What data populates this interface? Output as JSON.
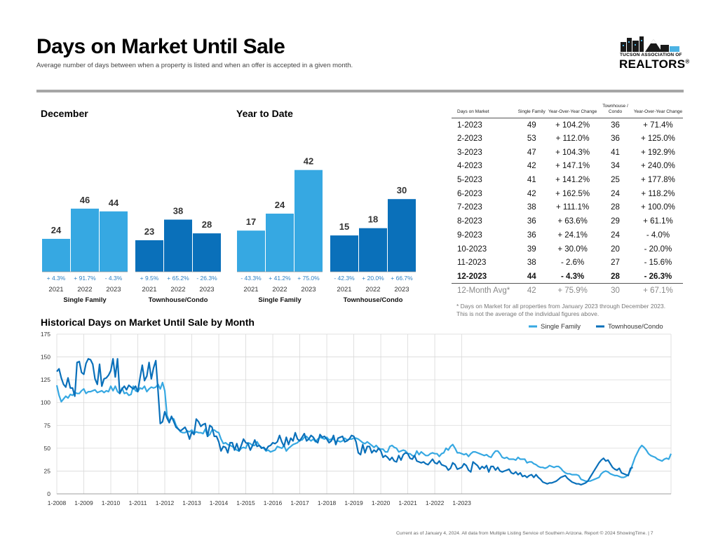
{
  "header": {
    "title": "Days on Market Until Sale",
    "subtitle": "Average number of days between when a property is listed and when an offer is accepted in a given month."
  },
  "logo": {
    "line1": "TUCSON ASSOCIATION OF",
    "line2": "REALTORS",
    "reg": "®"
  },
  "colors": {
    "single_family": "#36a8e2",
    "townhouse": "#0a70ba",
    "grid": "#d9d9d9",
    "divider": "#a6a6a6",
    "pct_text": "#2b7fc3"
  },
  "sections": {
    "december": "December",
    "ytd": "Year to Date"
  },
  "chart_data": [
    {
      "type": "bar",
      "title": "December",
      "groups": [
        {
          "name": "Single Family",
          "categories": [
            "2021",
            "2022",
            "2023"
          ],
          "values": [
            24,
            46,
            44
          ],
          "changes": [
            "+ 4.3%",
            "+ 91.7%",
            "- 4.3%"
          ]
        },
        {
          "name": "Townhouse/Condo",
          "categories": [
            "2021",
            "2022",
            "2023"
          ],
          "values": [
            23,
            38,
            28
          ],
          "changes": [
            "+ 9.5%",
            "+ 65.2%",
            "- 26.3%"
          ]
        }
      ]
    },
    {
      "type": "bar",
      "title": "Year to Date",
      "groups": [
        {
          "name": "Single Family",
          "categories": [
            "2021",
            "2022",
            "2023"
          ],
          "values": [
            17,
            24,
            42
          ],
          "changes": [
            "- 43.3%",
            "+ 41.2%",
            "+ 75.0%"
          ]
        },
        {
          "name": "Townhouse/Condo",
          "categories": [
            "2021",
            "2022",
            "2023"
          ],
          "values": [
            15,
            18,
            30
          ],
          "changes": [
            "- 42.3%",
            "+ 20.0%",
            "+ 66.7%"
          ]
        }
      ]
    },
    {
      "type": "table",
      "columns": [
        "Days on Market",
        "Single Family",
        "Year-Over-Year Change",
        "Townhouse / Condo",
        "Year-Over-Year Change"
      ],
      "rows": [
        [
          "1-2023",
          "49",
          "+ 104.2%",
          "36",
          "+ 71.4%"
        ],
        [
          "2-2023",
          "53",
          "+ 112.0%",
          "36",
          "+ 125.0%"
        ],
        [
          "3-2023",
          "47",
          "+ 104.3%",
          "41",
          "+ 192.9%"
        ],
        [
          "4-2023",
          "42",
          "+ 147.1%",
          "34",
          "+ 240.0%"
        ],
        [
          "5-2023",
          "41",
          "+ 141.2%",
          "25",
          "+ 177.8%"
        ],
        [
          "6-2023",
          "42",
          "+ 162.5%",
          "24",
          "+ 118.2%"
        ],
        [
          "7-2023",
          "38",
          "+ 111.1%",
          "28",
          "+ 100.0%"
        ],
        [
          "8-2023",
          "36",
          "+ 63.6%",
          "29",
          "+ 61.1%"
        ],
        [
          "9-2023",
          "36",
          "+ 24.1%",
          "24",
          "- 4.0%"
        ],
        [
          "10-2023",
          "39",
          "+ 30.0%",
          "20",
          "- 20.0%"
        ],
        [
          "11-2023",
          "38",
          "- 2.6%",
          "27",
          "- 15.6%"
        ],
        [
          "12-2023",
          "44",
          "- 4.3%",
          "28",
          "- 26.3%"
        ]
      ],
      "summary": [
        "12-Month Avg*",
        "42",
        "+ 75.9%",
        "30",
        "+ 67.1%"
      ],
      "footnote": "* Days on Market for all properties from January 2023 through December 2023. This is not the average of the individual figures above."
    },
    {
      "type": "line",
      "title": "Historical Days on Market Until Sale by Month",
      "ylim": [
        0,
        175
      ],
      "yticks": [
        0,
        25,
        50,
        75,
        100,
        125,
        150,
        175
      ],
      "xticks": [
        "1-2008",
        "1-2009",
        "1-2010",
        "1-2011",
        "1-2012",
        "1-2013",
        "1-2014",
        "1-2015",
        "1-2016",
        "1-2017",
        "1-2018",
        "1-2019",
        "1-2020",
        "1-2021",
        "1-2022",
        "1-2023"
      ],
      "x_start": "1-2008",
      "legend": "top-right",
      "series": [
        {
          "name": "Single Family",
          "values": [
            119,
            108,
            101,
            104,
            107,
            105,
            109,
            108,
            111,
            110,
            110,
            113,
            115,
            110,
            112,
            112,
            113,
            114,
            111,
            112,
            113,
            111,
            113,
            112,
            118,
            113,
            118,
            112,
            110,
            116,
            110,
            111,
            108,
            109,
            118,
            113,
            112,
            116,
            115,
            118,
            112,
            115,
            117,
            116,
            117,
            120,
            115,
            122,
            113,
            86,
            80,
            83,
            82,
            75,
            71,
            68,
            67,
            67,
            69,
            68,
            70,
            66,
            68,
            67,
            67,
            66,
            71,
            63,
            65,
            70,
            70,
            68,
            67,
            60,
            55,
            56,
            54,
            53,
            52,
            50,
            48,
            47,
            50,
            51,
            50,
            56,
            55,
            53,
            53,
            57,
            53,
            51,
            50,
            47,
            48,
            46,
            47,
            48,
            52,
            51,
            50,
            53,
            47,
            50,
            52,
            54,
            55,
            56,
            59,
            59,
            62,
            63,
            60,
            58,
            60,
            57,
            60,
            62,
            61,
            60,
            62,
            59,
            60,
            60,
            57,
            58,
            57,
            58,
            61,
            59,
            60,
            60,
            61,
            61,
            60,
            58,
            56,
            55,
            57,
            55,
            53,
            51,
            53,
            50,
            49,
            49,
            46,
            46,
            52,
            53,
            51,
            50,
            46,
            47,
            48,
            47,
            44,
            44,
            42,
            41,
            47,
            43,
            46,
            44,
            42,
            42,
            44,
            45,
            44,
            44,
            41,
            44,
            45,
            50,
            48,
            52,
            54,
            50,
            45,
            45,
            44,
            43,
            44,
            41,
            44,
            46,
            46,
            45,
            44,
            43,
            42,
            43,
            41,
            40,
            44,
            47,
            47,
            44,
            40,
            39,
            40,
            38,
            38,
            38,
            37,
            40,
            38,
            38,
            38,
            34,
            35,
            35,
            33,
            32,
            30,
            29,
            29,
            28,
            29,
            31,
            30,
            29,
            30,
            30,
            28,
            25,
            23,
            22,
            22,
            21,
            21,
            21,
            20,
            16,
            15,
            14,
            14,
            14,
            15,
            16,
            17,
            18,
            22,
            24,
            25,
            24,
            22,
            21,
            20,
            20,
            19,
            18,
            18,
            19,
            21,
            26,
            33,
            40,
            45,
            50,
            53,
            51,
            48,
            44,
            42,
            41,
            40,
            38,
            37,
            36,
            38,
            39,
            38,
            44
          ]
        },
        {
          "name": "Townhouse/Condo",
          "values": [
            134,
            137,
            127,
            120,
            117,
            127,
            116,
            116,
            107,
            144,
            145,
            133,
            131,
            143,
            148,
            147,
            142,
            126,
            120,
            142,
            118,
            126,
            127,
            130,
            135,
            148,
            128,
            148,
            110,
            115,
            118,
            114,
            119,
            117,
            115,
            118,
            112,
            127,
            141,
            124,
            129,
            144,
            126,
            138,
            146,
            113,
            77,
            79,
            90,
            83,
            78,
            85,
            79,
            73,
            71,
            69,
            71,
            73,
            68,
            60,
            68,
            65,
            82,
            79,
            74,
            76,
            77,
            63,
            75,
            73,
            63,
            63,
            57,
            47,
            52,
            51,
            45,
            56,
            56,
            48,
            55,
            47,
            53,
            60,
            56,
            55,
            48,
            53,
            59,
            52,
            53,
            50,
            51,
            48,
            52,
            53,
            56,
            55,
            57,
            64,
            57,
            52,
            62,
            54,
            61,
            58,
            67,
            60,
            58,
            62,
            66,
            58,
            60,
            64,
            62,
            58,
            56,
            65,
            62,
            63,
            60,
            56,
            58,
            64,
            54,
            61,
            62,
            63,
            57,
            58,
            60,
            64,
            63,
            57,
            45,
            43,
            54,
            45,
            52,
            52,
            45,
            48,
            46,
            50,
            47,
            40,
            42,
            40,
            37,
            40,
            36,
            35,
            42,
            37,
            43,
            45,
            44,
            39,
            38,
            42,
            36,
            35,
            34,
            35,
            33,
            32,
            35,
            38,
            34,
            33,
            36,
            32,
            31,
            30,
            26,
            28,
            34,
            32,
            27,
            28,
            29,
            33,
            31,
            26,
            24,
            35,
            33,
            31,
            27,
            30,
            28,
            31,
            24,
            30,
            30,
            26,
            29,
            25,
            24,
            25,
            26,
            27,
            23,
            22,
            24,
            21,
            23,
            19,
            20,
            18,
            20,
            21,
            18,
            21,
            18,
            16,
            13,
            12,
            11,
            12,
            12,
            13,
            14,
            16,
            18,
            19,
            20,
            17,
            15,
            13,
            12,
            11,
            11,
            10,
            11,
            12,
            14,
            18,
            22,
            26,
            30,
            34,
            37,
            39,
            36,
            37,
            33,
            29,
            27,
            26,
            28,
            23,
            22,
            21,
            20,
            28,
            29
          ]
        }
      ]
    }
  ],
  "footer": "Current as of January 4, 2024. All data from Multiple Listing Service of Southern Arizona. Report © 2024 ShowingTime. | 7"
}
